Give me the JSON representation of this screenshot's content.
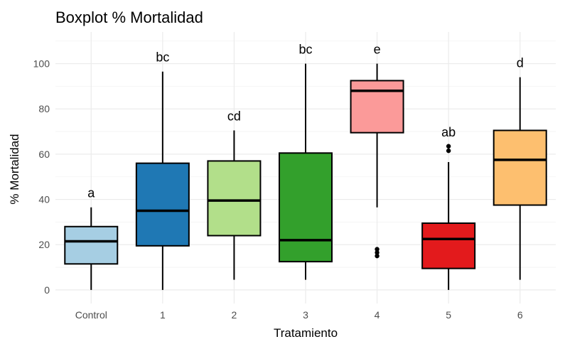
{
  "chart_data": {
    "type": "boxplot",
    "title": "Boxplot % Mortalidad",
    "xlabel": "Tratamiento",
    "ylabel": "% Mortalidad",
    "ylim": [
      -6,
      114
    ],
    "yticks": [
      0,
      20,
      40,
      60,
      80,
      100
    ],
    "grid": true,
    "legend": "none",
    "categories": [
      "Control",
      "1",
      "2",
      "3",
      "4",
      "5",
      "6"
    ],
    "boxes": [
      {
        "category": "Control",
        "min": 0,
        "q1": 11.5,
        "median": 21.5,
        "q3": 28,
        "max": 36.5,
        "outliers": [],
        "color": "#a6cee3",
        "group": "a"
      },
      {
        "category": "1",
        "min": 0,
        "q1": 19.5,
        "median": 35,
        "q3": 56,
        "max": 96.5,
        "outliers": [],
        "color": "#1f78b4",
        "group": "bc"
      },
      {
        "category": "2",
        "min": 4.5,
        "q1": 24,
        "median": 39.5,
        "q3": 57,
        "max": 70.5,
        "outliers": [],
        "color": "#b2df8a",
        "group": "cd"
      },
      {
        "category": "3",
        "min": 4.5,
        "q1": 12.5,
        "median": 22,
        "q3": 60.5,
        "max": 100,
        "outliers": [],
        "color": "#33a02c",
        "group": "bc"
      },
      {
        "category": "4",
        "min": 36.5,
        "q1": 69.5,
        "median": 88,
        "q3": 92.5,
        "max": 100,
        "outliers": [
          15,
          16.5,
          18
        ],
        "color": "#fb9a99",
        "group": "e"
      },
      {
        "category": "5",
        "min": 0,
        "q1": 9.5,
        "median": 22.5,
        "q3": 29.5,
        "max": 56.5,
        "outliers": [
          61.5,
          63.5
        ],
        "color": "#e31a1c",
        "group": "ab"
      },
      {
        "category": "6",
        "min": 4.5,
        "q1": 37.5,
        "median": 57.5,
        "q3": 70.5,
        "max": 94,
        "outliers": [],
        "color": "#fdbf6f",
        "group": "d"
      }
    ]
  }
}
